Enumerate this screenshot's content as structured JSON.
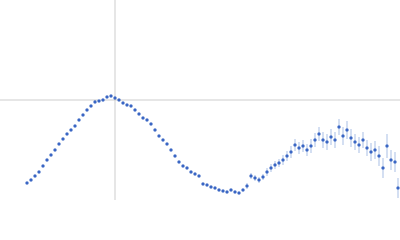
{
  "chart_data": {
    "type": "scatter",
    "x": [
      27,
      31,
      35,
      39,
      43,
      47,
      51,
      55,
      59,
      63,
      67,
      71,
      75,
      79,
      83,
      87,
      91,
      95,
      99,
      103,
      107,
      111,
      115,
      119,
      123,
      127,
      131,
      135,
      139,
      143,
      147,
      151,
      155,
      159,
      163,
      167,
      171,
      175,
      179,
      183,
      187,
      191,
      195,
      199,
      203,
      207,
      211,
      215,
      219,
      223,
      227,
      231,
      235,
      239,
      243,
      247,
      251,
      255,
      259,
      263,
      267,
      271,
      275,
      279,
      283,
      287,
      291,
      295,
      299,
      303,
      307,
      311,
      315,
      319,
      323,
      327,
      331,
      335,
      339,
      343,
      347,
      351,
      355,
      359,
      363,
      367,
      371,
      375,
      379,
      383,
      387,
      391,
      395,
      398
    ],
    "series": [
      {
        "color": "#3a66c4",
        "error_color": "#a9bfe6",
        "values": [
          17,
          20,
          24,
          28,
          34,
          40,
          45,
          50,
          56,
          61,
          66,
          70,
          74,
          80,
          85,
          90,
          94,
          98,
          99,
          100,
          103,
          104,
          102,
          100,
          97,
          95,
          94,
          90,
          86,
          82,
          80,
          76,
          70,
          64,
          60,
          56,
          50,
          44,
          38,
          34,
          32,
          28,
          26,
          24,
          16,
          15,
          13,
          12,
          10,
          9,
          8,
          10,
          8,
          7,
          10,
          14,
          24,
          22,
          20,
          23,
          28,
          32,
          35,
          37,
          40,
          44,
          48,
          55,
          52,
          54,
          50,
          54,
          60,
          66,
          60,
          58,
          63,
          60,
          73,
          64,
          70,
          62,
          58,
          55,
          60,
          52,
          48,
          50,
          44,
          32,
          54,
          40,
          38,
          12
        ],
        "errors": [
          1,
          1,
          1,
          1,
          1,
          1,
          1,
          1,
          1,
          1,
          1,
          1,
          1,
          1,
          1,
          1,
          1,
          1,
          1,
          1,
          1,
          1,
          1,
          1,
          1,
          1,
          1,
          1,
          1,
          1,
          1,
          1,
          1,
          1,
          1,
          1,
          1,
          1,
          1,
          1,
          1,
          1,
          1,
          1,
          1,
          1,
          1,
          1,
          1,
          1,
          1,
          1,
          1,
          1,
          1,
          3,
          3,
          3,
          3,
          3,
          4,
          4,
          4,
          4,
          5,
          5,
          6,
          6,
          6,
          6,
          6,
          7,
          7,
          7,
          8,
          8,
          8,
          8,
          8,
          9,
          9,
          9,
          8,
          8,
          8,
          8,
          9,
          9,
          10,
          10,
          12,
          10,
          10,
          10
        ]
      }
    ],
    "xlim": [
      0,
      400
    ],
    "ylim": [
      0,
      200
    ],
    "reference_lines": {
      "x": 115,
      "y": 100,
      "color": "#cccccc"
    }
  }
}
